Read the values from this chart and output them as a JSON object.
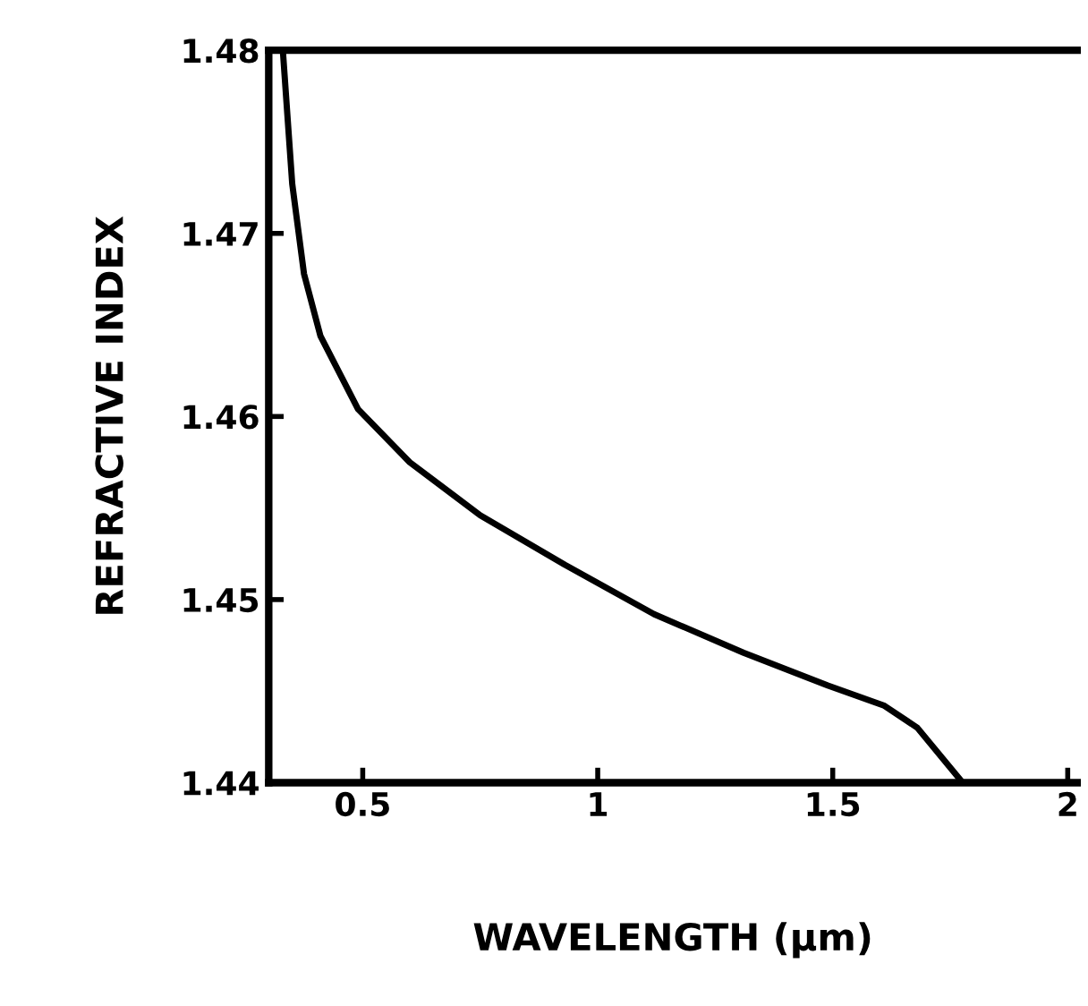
{
  "chart_data": {
    "type": "line",
    "xlabel": "WAVELENGTH (µm)",
    "ylabel": "REFRACTIVE INDEX",
    "x": [
      0.33,
      0.35,
      0.375,
      0.41,
      0.49,
      0.6,
      0.75,
      0.93,
      1.12,
      1.31,
      1.49,
      1.61,
      1.68,
      1.77
    ],
    "series": [
      {
        "color": "#000000",
        "values": [
          1.48,
          1.4727,
          1.4678,
          1.4644,
          1.4604,
          1.4575,
          1.4546,
          1.4519,
          1.4492,
          1.4471,
          1.4453,
          1.4442,
          1.443,
          1.4402
        ]
      }
    ],
    "xlim": [
      0.3,
      2.02
    ],
    "ylim": [
      1.44,
      1.48
    ],
    "xticks": [
      0.5,
      1,
      1.5,
      2
    ],
    "yticks": [
      {
        "value": 1.44,
        "label": "1.44"
      },
      {
        "value": 1.45,
        "label": "1.45"
      },
      {
        "value": 1.46,
        "label": "1.46"
      },
      {
        "value": 1.47,
        "label": "1.47"
      },
      {
        "value": 1.48,
        "label": "1.48"
      }
    ],
    "grid": false,
    "legend": false,
    "marker": "none",
    "line_style": "solid"
  }
}
